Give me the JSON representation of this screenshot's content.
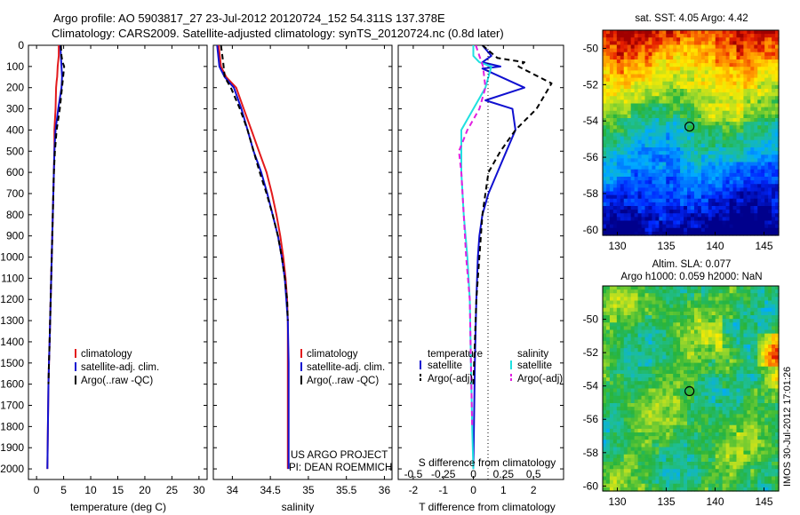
{
  "figure": {
    "title_line1": "Argo profile: AO 5903817_27 23-Jul-2012 20120724_152 54.311S 137.378E",
    "title_line2": "Climatology: CARS2009. Satellite-adjusted climatology: synTS_20120724.nc (0.8d later)",
    "credit_line1": "US ARGO PROJECT",
    "credit_line2": "PI: DEAN ROEMMICH",
    "stamp": "IMOS 30-Jul-2012 17:01:26"
  },
  "colors": {
    "climatology": "#e31a1c",
    "satellite": "#1010d0",
    "argo": "#000000",
    "salinity_satellite": "#20e0e0",
    "salinity_argo": "#e020e0"
  },
  "chart_data": [
    {
      "type": "line",
      "name": "temperature profile",
      "xlabel": "temperature (deg C)",
      "ylabel": "",
      "xlim": [
        -1.5,
        31.5
      ],
      "ylim": [
        2050,
        0
      ],
      "xticks": [
        "0",
        "5",
        "10",
        "15",
        "20",
        "25",
        "30"
      ],
      "yticks": [
        "0",
        "100",
        "200",
        "300",
        "400",
        "500",
        "600",
        "700",
        "800",
        "900",
        "1000",
        "1100",
        "1200",
        "1300",
        "1400",
        "1500",
        "1600",
        "1700",
        "1800",
        "1900",
        "2000"
      ],
      "legend": [
        "climatology",
        "satellite-adj. clim.",
        "Argo(..raw -QC)"
      ],
      "series": [
        {
          "name": "climatology",
          "style": "solid",
          "color": "#e31a1c",
          "x": [
            4.1,
            4.1,
            3.9,
            3.8,
            3.7,
            3.6,
            3.5,
            3.3,
            3.3,
            3.2,
            3.1,
            3.0,
            2.9,
            2.8,
            2.7,
            2.6,
            2.5,
            2.4,
            2.3,
            2.2,
            2.1,
            2.0
          ],
          "y": [
            0,
            50,
            100,
            150,
            170,
            200,
            300,
            400,
            500,
            600,
            700,
            800,
            900,
            1000,
            1100,
            1200,
            1300,
            1400,
            1500,
            1600,
            1800,
            2000
          ]
        },
        {
          "name": "satellite-adj. clim.",
          "style": "solid",
          "color": "#1010d0",
          "x": [
            4.4,
            4.5,
            4.6,
            4.7,
            4.6,
            4.0,
            3.5,
            3.3,
            3.2,
            3.1,
            3.0,
            2.9,
            2.8,
            2.7,
            2.6,
            2.5,
            2.4,
            2.3,
            2.2,
            2.1,
            2.0
          ],
          "y": [
            0,
            50,
            100,
            150,
            200,
            300,
            400,
            500,
            600,
            700,
            800,
            900,
            1000,
            1100,
            1200,
            1300,
            1400,
            1500,
            1600,
            1800,
            2000
          ]
        },
        {
          "name": "Argo(..raw -QC)",
          "style": "dashed",
          "color": "#000000",
          "x": [
            4.5,
            4.6,
            4.8,
            5.1,
            4.9,
            4.3,
            3.7,
            3.4,
            3.2,
            3.1,
            3.0,
            2.9,
            2.8,
            2.7,
            2.6,
            2.5,
            2.4,
            2.3,
            2.2
          ],
          "y": [
            0,
            50,
            80,
            100,
            150,
            300,
            400,
            500,
            600,
            700,
            800,
            900,
            1000,
            1100,
            1200,
            1300,
            1400,
            1500,
            1600
          ]
        }
      ]
    },
    {
      "type": "line",
      "name": "salinity profile",
      "xlabel": "salinity",
      "ylabel": "",
      "xlim": [
        33.75,
        36.1
      ],
      "ylim": [
        2050,
        0
      ],
      "xticks": [
        "34",
        "34.5",
        "35",
        "35.5",
        "36"
      ],
      "legend": [
        "climatology",
        "satellite-adj. clim.",
        "Argo(..raw -QC)"
      ],
      "series": [
        {
          "name": "climatology",
          "style": "solid",
          "color": "#e31a1c",
          "x": [
            33.82,
            33.85,
            33.92,
            34.05,
            34.15,
            34.25,
            34.35,
            34.45,
            34.52,
            34.58,
            34.63,
            34.67,
            34.7,
            34.72,
            34.73,
            34.73,
            34.73,
            34.73
          ],
          "y": [
            0,
            100,
            150,
            200,
            300,
            400,
            500,
            600,
            700,
            800,
            900,
            1000,
            1100,
            1200,
            1300,
            1500,
            1700,
            2000
          ]
        },
        {
          "name": "satellite-adj. clim.",
          "style": "solid",
          "color": "#1010d0",
          "x": [
            33.8,
            33.83,
            33.9,
            34.02,
            34.12,
            34.2,
            34.28,
            34.38,
            34.46,
            34.53,
            34.6,
            34.65,
            34.69,
            34.71,
            34.73,
            34.74,
            34.74
          ],
          "y": [
            0,
            100,
            150,
            200,
            300,
            400,
            500,
            600,
            700,
            800,
            900,
            1000,
            1100,
            1200,
            1300,
            1500,
            2000
          ]
        },
        {
          "name": "Argo(..raw -QC)",
          "style": "dashed",
          "color": "#000000",
          "x": [
            33.85,
            33.88,
            33.9,
            33.98,
            34.1,
            34.2,
            34.28,
            34.36,
            34.45,
            34.53,
            34.6,
            34.65,
            34.69,
            34.72,
            34.73
          ],
          "y": [
            0,
            80,
            150,
            200,
            300,
            400,
            500,
            600,
            700,
            800,
            900,
            1000,
            1100,
            1200,
            1300
          ]
        }
      ]
    },
    {
      "type": "line",
      "name": "difference from climatology",
      "xlabel": "T difference from climatology",
      "xlabel_top": "S difference from climatology",
      "xlim": [
        -2.5,
        3.0
      ],
      "ylim": [
        2050,
        0
      ],
      "xticks": [
        "-2",
        "-1",
        "0",
        "1",
        "2"
      ],
      "xticks_s": [
        "-0.5",
        "-0.25",
        "0",
        "0.25",
        "0.5"
      ],
      "legend_t_title": "temperature",
      "legend_s_title": "salinity",
      "legend": [
        "satellite",
        "Argo(-adj)",
        "satellite",
        "Argo(-adj)"
      ],
      "series": [
        {
          "name": "T satellite",
          "style": "solid",
          "color": "#1010d0",
          "x": [
            0.3,
            0.6,
            0.3,
            0.9,
            0.3,
            1.7,
            0.4,
            1.3,
            1.4,
            1.1,
            0.8,
            0.5,
            0.3,
            0.2,
            0.15,
            0.1,
            0.05,
            0.02,
            0.0
          ],
          "y": [
            0,
            50,
            80,
            100,
            110,
            200,
            260,
            300,
            400,
            500,
            600,
            700,
            800,
            900,
            1000,
            1200,
            1500,
            1800,
            2000
          ]
        },
        {
          "name": "T Argo(-adj)",
          "style": "dashed",
          "color": "#000000",
          "x": [
            0.3,
            0.8,
            1.7,
            1.5,
            2.6,
            2.1,
            1.4,
            0.9,
            0.5,
            0.3,
            0.2,
            0.1,
            0.05,
            0.0
          ],
          "y": [
            0,
            60,
            80,
            100,
            180,
            300,
            400,
            500,
            600,
            800,
            1000,
            1200,
            1400,
            1600
          ]
        },
        {
          "name": "S satellite",
          "style": "solid",
          "color": "#20e0e0",
          "x": [
            0.0,
            0.0,
            0.05,
            0.15,
            0.1,
            0.0,
            -0.1,
            -0.1,
            -0.08,
            -0.05,
            -0.03,
            -0.02,
            -0.01,
            0.0
          ],
          "y": [
            0,
            50,
            80,
            100,
            200,
            300,
            400,
            600,
            800,
            1000,
            1200,
            1500,
            1800,
            2000
          ]
        },
        {
          "name": "S Argo(-adj)",
          "style": "dashed",
          "color": "#e020e0",
          "x": [
            0.02,
            0.05,
            0.08,
            0.1,
            0.05,
            -0.05,
            -0.12,
            -0.1,
            -0.08,
            -0.06,
            -0.03,
            -0.02,
            -0.01
          ],
          "y": [
            0,
            50,
            100,
            200,
            300,
            400,
            500,
            600,
            800,
            1000,
            1200,
            1500,
            1800
          ]
        }
      ]
    },
    {
      "type": "heatmap",
      "name": "SST map",
      "title": "sat. SST: 4.05 Argo: 4.42",
      "xticks": [
        "130",
        "135",
        "140",
        "145"
      ],
      "yticks": [
        "-50",
        "-52",
        "-54",
        "-56",
        "-58",
        "-60"
      ],
      "xlim": [
        128.5,
        146.5
      ],
      "ylim": [
        -60.3,
        -49.0
      ],
      "marker": {
        "lon": 137.378,
        "lat": -54.311
      }
    },
    {
      "type": "heatmap",
      "name": "SLA map",
      "title": "Altim. SLA: 0.077",
      "subtitle": "Argo h1000: 0.059 h2000: NaN",
      "xticks": [
        "130",
        "135",
        "140",
        "145"
      ],
      "yticks": [
        "-50",
        "-52",
        "-54",
        "-56",
        "-58",
        "-60"
      ],
      "xlim": [
        128.5,
        146.5
      ],
      "ylim": [
        -60.3,
        -48.0
      ],
      "marker": {
        "lon": 137.378,
        "lat": -54.311
      }
    }
  ]
}
